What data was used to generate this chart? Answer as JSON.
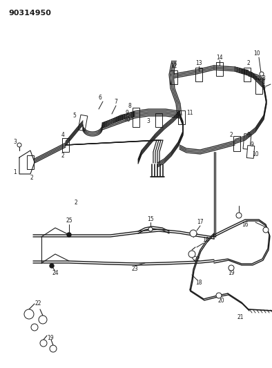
{
  "title": "90314950",
  "bg_color": "#ffffff",
  "line_color": "#1a1a1a",
  "figsize": [
    3.94,
    5.33
  ],
  "dpi": 100
}
